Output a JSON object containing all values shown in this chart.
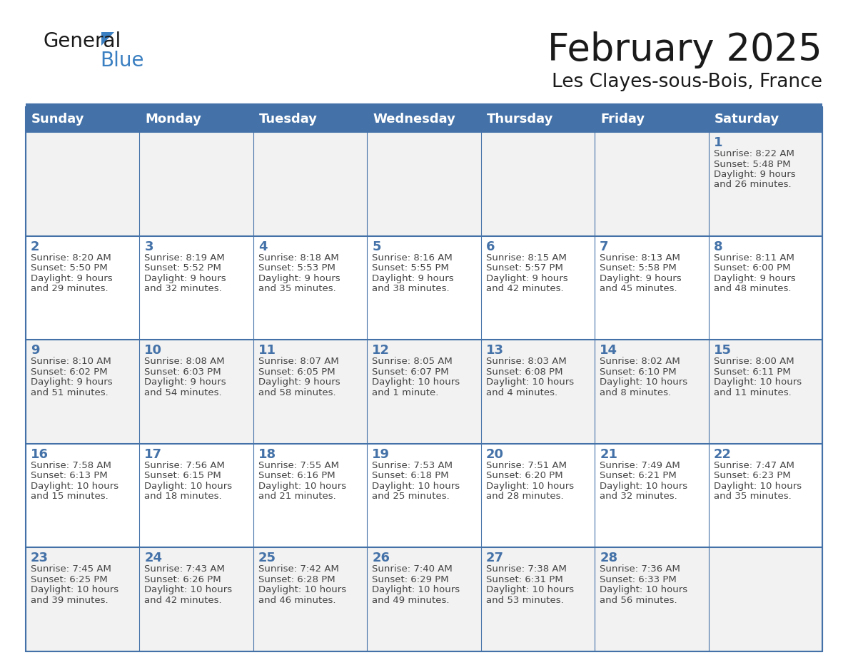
{
  "title": "February 2025",
  "subtitle": "Les Clayes-sous-Bois, France",
  "header_bg": "#4472A8",
  "header_text": "#FFFFFF",
  "day_names": [
    "Sunday",
    "Monday",
    "Tuesday",
    "Wednesday",
    "Thursday",
    "Friday",
    "Saturday"
  ],
  "row_bg_light": "#F2F2F2",
  "row_bg_white": "#FFFFFF",
  "border_color": "#4472A8",
  "title_color": "#1a1a1a",
  "subtitle_color": "#1a1a1a",
  "cell_text_color": "#444444",
  "day_number_color": "#4472A8",
  "separator_color": "#4472A8",
  "calendar_data": [
    [
      null,
      null,
      null,
      null,
      null,
      null,
      {
        "day": 1,
        "sunrise": "8:22 AM",
        "sunset": "5:48 PM",
        "daylight": "9 hours and 26 minutes."
      }
    ],
    [
      {
        "day": 2,
        "sunrise": "8:20 AM",
        "sunset": "5:50 PM",
        "daylight": "9 hours and 29 minutes."
      },
      {
        "day": 3,
        "sunrise": "8:19 AM",
        "sunset": "5:52 PM",
        "daylight": "9 hours and 32 minutes."
      },
      {
        "day": 4,
        "sunrise": "8:18 AM",
        "sunset": "5:53 PM",
        "daylight": "9 hours and 35 minutes."
      },
      {
        "day": 5,
        "sunrise": "8:16 AM",
        "sunset": "5:55 PM",
        "daylight": "9 hours and 38 minutes."
      },
      {
        "day": 6,
        "sunrise": "8:15 AM",
        "sunset": "5:57 PM",
        "daylight": "9 hours and 42 minutes."
      },
      {
        "day": 7,
        "sunrise": "8:13 AM",
        "sunset": "5:58 PM",
        "daylight": "9 hours and 45 minutes."
      },
      {
        "day": 8,
        "sunrise": "8:11 AM",
        "sunset": "6:00 PM",
        "daylight": "9 hours and 48 minutes."
      }
    ],
    [
      {
        "day": 9,
        "sunrise": "8:10 AM",
        "sunset": "6:02 PM",
        "daylight": "9 hours and 51 minutes."
      },
      {
        "day": 10,
        "sunrise": "8:08 AM",
        "sunset": "6:03 PM",
        "daylight": "9 hours and 54 minutes."
      },
      {
        "day": 11,
        "sunrise": "8:07 AM",
        "sunset": "6:05 PM",
        "daylight": "9 hours and 58 minutes."
      },
      {
        "day": 12,
        "sunrise": "8:05 AM",
        "sunset": "6:07 PM",
        "daylight": "10 hours and 1 minute."
      },
      {
        "day": 13,
        "sunrise": "8:03 AM",
        "sunset": "6:08 PM",
        "daylight": "10 hours and 4 minutes."
      },
      {
        "day": 14,
        "sunrise": "8:02 AM",
        "sunset": "6:10 PM",
        "daylight": "10 hours and 8 minutes."
      },
      {
        "day": 15,
        "sunrise": "8:00 AM",
        "sunset": "6:11 PM",
        "daylight": "10 hours and 11 minutes."
      }
    ],
    [
      {
        "day": 16,
        "sunrise": "7:58 AM",
        "sunset": "6:13 PM",
        "daylight": "10 hours and 15 minutes."
      },
      {
        "day": 17,
        "sunrise": "7:56 AM",
        "sunset": "6:15 PM",
        "daylight": "10 hours and 18 minutes."
      },
      {
        "day": 18,
        "sunrise": "7:55 AM",
        "sunset": "6:16 PM",
        "daylight": "10 hours and 21 minutes."
      },
      {
        "day": 19,
        "sunrise": "7:53 AM",
        "sunset": "6:18 PM",
        "daylight": "10 hours and 25 minutes."
      },
      {
        "day": 20,
        "sunrise": "7:51 AM",
        "sunset": "6:20 PM",
        "daylight": "10 hours and 28 minutes."
      },
      {
        "day": 21,
        "sunrise": "7:49 AM",
        "sunset": "6:21 PM",
        "daylight": "10 hours and 32 minutes."
      },
      {
        "day": 22,
        "sunrise": "7:47 AM",
        "sunset": "6:23 PM",
        "daylight": "10 hours and 35 minutes."
      }
    ],
    [
      {
        "day": 23,
        "sunrise": "7:45 AM",
        "sunset": "6:25 PM",
        "daylight": "10 hours and 39 minutes."
      },
      {
        "day": 24,
        "sunrise": "7:43 AM",
        "sunset": "6:26 PM",
        "daylight": "10 hours and 42 minutes."
      },
      {
        "day": 25,
        "sunrise": "7:42 AM",
        "sunset": "6:28 PM",
        "daylight": "10 hours and 46 minutes."
      },
      {
        "day": 26,
        "sunrise": "7:40 AM",
        "sunset": "6:29 PM",
        "daylight": "10 hours and 49 minutes."
      },
      {
        "day": 27,
        "sunrise": "7:38 AM",
        "sunset": "6:31 PM",
        "daylight": "10 hours and 53 minutes."
      },
      {
        "day": 28,
        "sunrise": "7:36 AM",
        "sunset": "6:33 PM",
        "daylight": "10 hours and 56 minutes."
      },
      null
    ]
  ]
}
